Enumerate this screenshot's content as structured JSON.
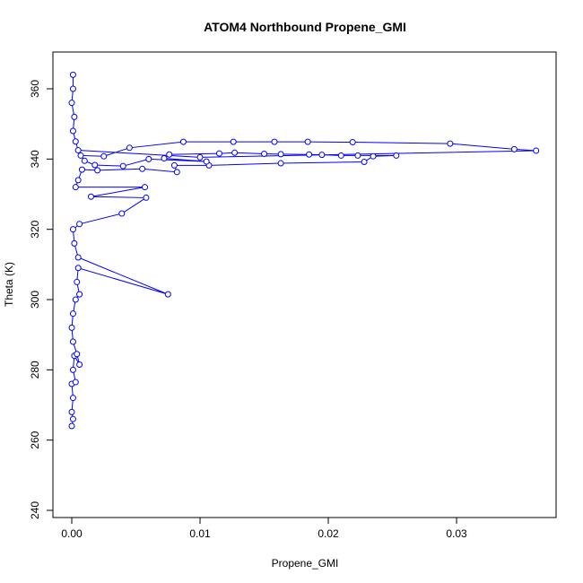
{
  "chart_data": {
    "type": "line",
    "title": "ATOM4 Northbound Propene_GMI",
    "x_label": "Propene_GMI",
    "y_label": "Theta (K)",
    "x": [
      0.0,
      0.0001,
      0.0,
      0.0001,
      0.0,
      0.0003,
      0.0001,
      0.0002,
      0.0006,
      0.0004,
      0.0001,
      0.0,
      0.0001,
      0.0003,
      0.0006,
      0.0004,
      0.0005,
      0.0075,
      0.0005,
      0.0002,
      0.0001,
      0.0006,
      0.0039,
      0.0058,
      0.0015,
      0.0057,
      0.0003,
      0.0005,
      0.0008,
      0.002,
      0.0055,
      0.0082,
      0.008,
      0.0107,
      0.0163,
      0.0228,
      0.0235,
      0.0253,
      0.0223,
      0.021,
      0.0195,
      0.0185,
      0.0163,
      0.015,
      0.0127,
      0.0115,
      0.0076,
      0.0072,
      0.0105,
      0.006,
      0.004,
      0.0018,
      0.001,
      0.0007,
      0.0025,
      0.0045,
      0.0087,
      0.0126,
      0.0158,
      0.0184,
      0.0219,
      0.0295,
      0.0345,
      0.0362,
      0.01,
      0.0005,
      0.0003,
      0.0001,
      0.0002,
      0.0,
      0.0001,
      0.0001
    ],
    "series": [
      {
        "name": "Propene_GMI",
        "color": "#0000ff",
        "values": [
          264,
          266,
          268,
          272,
          276,
          276.5,
          280,
          284,
          281.5,
          284.5,
          288,
          292,
          296,
          300,
          301.5,
          305,
          309,
          301.5,
          312,
          316,
          320,
          321.5,
          324.5,
          329,
          329.3,
          332,
          332,
          334,
          337,
          336.8,
          337.2,
          336.3,
          338.2,
          338.2,
          338.8,
          339.2,
          340.8,
          341,
          341,
          341,
          341.2,
          341.3,
          341.4,
          341.5,
          341.8,
          341.6,
          341.3,
          340.2,
          339.3,
          340,
          338,
          338.3,
          339.5,
          341,
          340.8,
          343.2,
          344.9,
          344.9,
          344.9,
          344.9,
          344.8,
          344.4,
          342.8,
          342.4,
          340.5,
          342.5,
          345,
          348,
          352,
          356,
          360,
          364
        ]
      }
    ],
    "xlim": [
      -0.00147,
      0.03776
    ],
    "ylim": [
      237.96,
      370.47
    ],
    "xticks": [
      {
        "value": 0,
        "label": "0.00"
      },
      0.01,
      0.02,
      0.03
    ],
    "yticks": [
      240,
      260,
      280,
      300,
      320,
      340,
      360
    ]
  }
}
